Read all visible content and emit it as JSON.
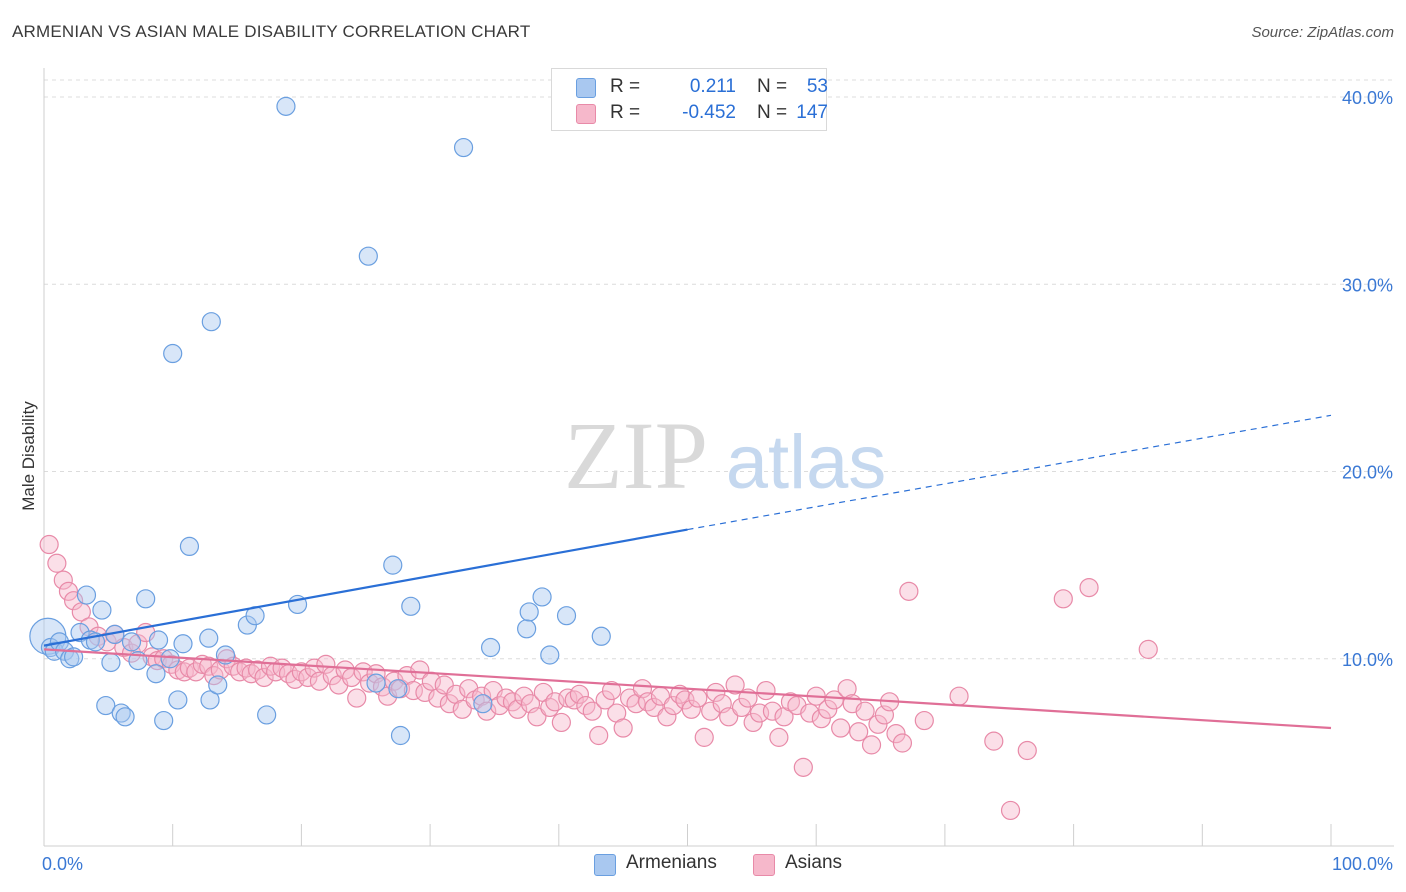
{
  "title": "ARMENIAN VS ASIAN MALE DISABILITY CORRELATION CHART",
  "source": "Source: ZipAtlas.com",
  "watermark": {
    "part1": "ZIP",
    "part2": "atlas"
  },
  "legend": {
    "rows": [
      {
        "r_label": "R =",
        "r_value": "0.211",
        "n_label": "N =",
        "n_value": "53",
        "color": "#a9c8f0",
        "stroke": "#6a9fe0"
      },
      {
        "r_label": "R =",
        "r_value": "-0.452",
        "n_label": "N =",
        "n_value": "147",
        "color": "#f6b8cb",
        "stroke": "#e88aa8"
      }
    ]
  },
  "bottom_legend": [
    {
      "label": "Armenians",
      "color": "#a9c8f0",
      "stroke": "#6a9fe0"
    },
    {
      "label": "Asians",
      "color": "#f6b8cb",
      "stroke": "#e88aa8"
    }
  ],
  "chart_data": {
    "type": "scatter",
    "title": "ARMENIAN VS ASIAN MALE DISABILITY CORRELATION CHART",
    "xlabel": "",
    "ylabel": "Male Disability",
    "xlim": [
      0,
      100
    ],
    "ylim": [
      0,
      40
    ],
    "x_tick_labels": [
      "0.0%",
      "100.0%"
    ],
    "y_ticks": [
      10,
      20,
      30,
      40
    ],
    "y_tick_labels": [
      "10.0%",
      "20.0%",
      "30.0%",
      "40.0%"
    ],
    "grid": true,
    "legend_position": "top-center",
    "series": [
      {
        "name": "Armenians",
        "color": "#6a9fe0",
        "fill": "#a9c8f0",
        "trend": {
          "x0": 0,
          "y0": 10.7,
          "x1": 50,
          "y1": 16.9,
          "dashed_to_x": 100,
          "dashed_to_y": 23.0,
          "color": "#2a6fd6"
        },
        "points": [
          [
            0.3,
            11.2
          ],
          [
            0.5,
            10.6
          ],
          [
            0.8,
            10.4
          ],
          [
            1.2,
            10.9
          ],
          [
            1.6,
            10.4
          ],
          [
            2.0,
            10.0
          ],
          [
            2.3,
            10.1
          ],
          [
            2.8,
            11.4
          ],
          [
            3.3,
            13.4
          ],
          [
            3.6,
            11.0
          ],
          [
            4.0,
            10.9
          ],
          [
            4.5,
            12.6
          ],
          [
            4.8,
            7.5
          ],
          [
            5.2,
            9.8
          ],
          [
            5.5,
            11.3
          ],
          [
            6.0,
            7.1
          ],
          [
            6.3,
            6.9
          ],
          [
            6.8,
            10.9
          ],
          [
            7.3,
            9.9
          ],
          [
            7.9,
            13.2
          ],
          [
            8.7,
            9.2
          ],
          [
            8.9,
            11.0
          ],
          [
            9.3,
            6.7
          ],
          [
            9.8,
            10.0
          ],
          [
            10.0,
            26.3
          ],
          [
            10.4,
            7.8
          ],
          [
            10.8,
            10.8
          ],
          [
            11.3,
            16.0
          ],
          [
            12.8,
            11.1
          ],
          [
            12.9,
            7.8
          ],
          [
            13.0,
            28.0
          ],
          [
            13.5,
            8.6
          ],
          [
            14.1,
            10.2
          ],
          [
            15.8,
            11.8
          ],
          [
            16.4,
            12.3
          ],
          [
            17.3,
            7.0
          ],
          [
            18.8,
            39.5
          ],
          [
            19.7,
            12.9
          ],
          [
            25.2,
            31.5
          ],
          [
            25.8,
            8.7
          ],
          [
            27.1,
            15.0
          ],
          [
            27.5,
            8.4
          ],
          [
            27.7,
            5.9
          ],
          [
            28.5,
            12.8
          ],
          [
            32.6,
            37.3
          ],
          [
            34.1,
            7.6
          ],
          [
            34.7,
            10.6
          ],
          [
            37.5,
            11.6
          ],
          [
            37.7,
            12.5
          ],
          [
            38.7,
            13.3
          ],
          [
            39.3,
            10.2
          ],
          [
            40.6,
            12.3
          ],
          [
            43.3,
            11.2
          ]
        ]
      },
      {
        "name": "Asians",
        "color": "#e88aa8",
        "fill": "#f6b8cb",
        "trend": {
          "x0": 0,
          "y0": 10.5,
          "x1": 100,
          "y1": 6.3,
          "color": "#e06f97"
        },
        "points": [
          [
            0.4,
            16.1
          ],
          [
            1.0,
            15.1
          ],
          [
            1.5,
            14.2
          ],
          [
            1.9,
            13.6
          ],
          [
            2.3,
            13.1
          ],
          [
            2.9,
            12.5
          ],
          [
            3.5,
            11.7
          ],
          [
            4.2,
            11.2
          ],
          [
            4.9,
            10.9
          ],
          [
            5.5,
            11.3
          ],
          [
            6.2,
            10.6
          ],
          [
            6.8,
            10.3
          ],
          [
            7.3,
            10.8
          ],
          [
            7.9,
            11.4
          ],
          [
            8.4,
            10.1
          ],
          [
            8.8,
            9.9
          ],
          [
            9.3,
            10.0
          ],
          [
            9.9,
            9.7
          ],
          [
            10.4,
            9.4
          ],
          [
            10.9,
            9.3
          ],
          [
            11.3,
            9.5
          ],
          [
            11.8,
            9.3
          ],
          [
            12.3,
            9.7
          ],
          [
            12.8,
            9.6
          ],
          [
            13.2,
            9.1
          ],
          [
            13.7,
            9.4
          ],
          [
            14.2,
            10.0
          ],
          [
            14.7,
            9.6
          ],
          [
            15.2,
            9.3
          ],
          [
            15.7,
            9.5
          ],
          [
            16.1,
            9.2
          ],
          [
            16.6,
            9.4
          ],
          [
            17.1,
            9.0
          ],
          [
            17.6,
            9.6
          ],
          [
            18.0,
            9.3
          ],
          [
            18.5,
            9.5
          ],
          [
            19.0,
            9.2
          ],
          [
            19.5,
            8.9
          ],
          [
            20.0,
            9.3
          ],
          [
            20.5,
            9.0
          ],
          [
            21.0,
            9.5
          ],
          [
            21.4,
            8.8
          ],
          [
            21.9,
            9.7
          ],
          [
            22.4,
            9.1
          ],
          [
            22.9,
            8.6
          ],
          [
            23.4,
            9.4
          ],
          [
            23.9,
            9.0
          ],
          [
            24.3,
            7.9
          ],
          [
            24.8,
            9.3
          ],
          [
            25.3,
            8.7
          ],
          [
            25.8,
            9.2
          ],
          [
            26.3,
            8.5
          ],
          [
            26.7,
            8.0
          ],
          [
            27.2,
            8.8
          ],
          [
            27.7,
            8.4
          ],
          [
            28.2,
            9.1
          ],
          [
            28.7,
            8.3
          ],
          [
            29.2,
            9.4
          ],
          [
            29.6,
            8.2
          ],
          [
            30.1,
            8.8
          ],
          [
            30.6,
            7.9
          ],
          [
            31.1,
            8.6
          ],
          [
            31.5,
            7.6
          ],
          [
            32.0,
            8.1
          ],
          [
            32.5,
            7.3
          ],
          [
            33.0,
            8.4
          ],
          [
            33.5,
            7.8
          ],
          [
            34.0,
            8.0
          ],
          [
            34.4,
            7.2
          ],
          [
            34.9,
            8.3
          ],
          [
            35.4,
            7.5
          ],
          [
            35.9,
            7.9
          ],
          [
            36.4,
            7.7
          ],
          [
            36.8,
            7.3
          ],
          [
            37.3,
            8.0
          ],
          [
            37.8,
            7.6
          ],
          [
            38.3,
            6.9
          ],
          [
            38.8,
            8.2
          ],
          [
            39.3,
            7.4
          ],
          [
            39.7,
            7.7
          ],
          [
            40.2,
            6.6
          ],
          [
            40.7,
            7.9
          ],
          [
            41.2,
            7.8
          ],
          [
            41.6,
            8.1
          ],
          [
            42.1,
            7.5
          ],
          [
            42.6,
            7.2
          ],
          [
            43.1,
            5.9
          ],
          [
            43.6,
            7.8
          ],
          [
            44.1,
            8.3
          ],
          [
            44.5,
            7.1
          ],
          [
            45.0,
            6.3
          ],
          [
            45.5,
            7.9
          ],
          [
            46.0,
            7.6
          ],
          [
            46.5,
            8.4
          ],
          [
            46.9,
            7.7
          ],
          [
            47.4,
            7.4
          ],
          [
            47.9,
            8.0
          ],
          [
            48.4,
            6.9
          ],
          [
            48.9,
            7.5
          ],
          [
            49.4,
            8.1
          ],
          [
            49.8,
            7.8
          ],
          [
            50.3,
            7.3
          ],
          [
            50.8,
            7.9
          ],
          [
            51.3,
            5.8
          ],
          [
            51.8,
            7.2
          ],
          [
            52.2,
            8.2
          ],
          [
            52.7,
            7.6
          ],
          [
            53.2,
            6.9
          ],
          [
            53.7,
            8.6
          ],
          [
            54.2,
            7.4
          ],
          [
            54.7,
            7.9
          ],
          [
            55.1,
            6.6
          ],
          [
            55.6,
            7.1
          ],
          [
            56.1,
            8.3
          ],
          [
            56.6,
            7.2
          ],
          [
            57.1,
            5.8
          ],
          [
            57.5,
            6.9
          ],
          [
            58.0,
            7.7
          ],
          [
            58.5,
            7.5
          ],
          [
            59.0,
            4.2
          ],
          [
            59.5,
            7.1
          ],
          [
            60.0,
            8.0
          ],
          [
            60.4,
            6.8
          ],
          [
            60.9,
            7.3
          ],
          [
            61.4,
            7.8
          ],
          [
            61.9,
            6.3
          ],
          [
            62.4,
            8.4
          ],
          [
            62.8,
            7.6
          ],
          [
            63.3,
            6.1
          ],
          [
            63.8,
            7.2
          ],
          [
            64.3,
            5.4
          ],
          [
            64.8,
            6.5
          ],
          [
            65.3,
            7.0
          ],
          [
            65.7,
            7.7
          ],
          [
            66.2,
            6.0
          ],
          [
            66.7,
            5.5
          ],
          [
            67.2,
            13.6
          ],
          [
            68.4,
            6.7
          ],
          [
            71.1,
            8.0
          ],
          [
            73.8,
            5.6
          ],
          [
            75.1,
            1.9
          ],
          [
            76.4,
            5.1
          ],
          [
            79.2,
            13.2
          ],
          [
            81.2,
            13.8
          ],
          [
            85.8,
            10.5
          ]
        ]
      }
    ]
  }
}
